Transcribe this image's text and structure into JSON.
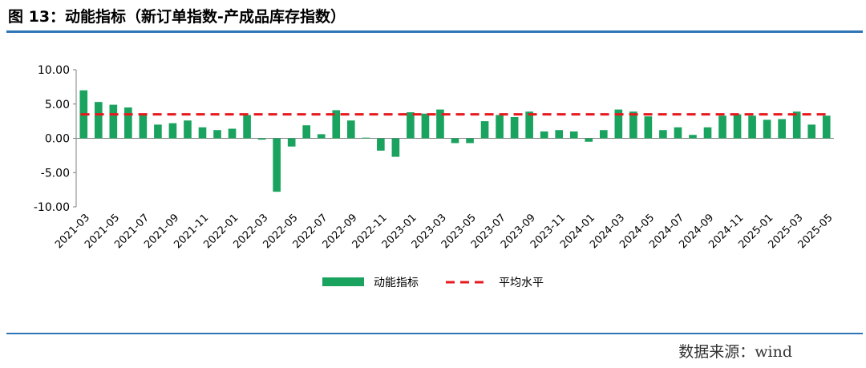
{
  "title": "图 13：动能指标（新订单指数-产成品库存指数）",
  "source": "数据来源：wind",
  "colors": {
    "bar": "#1aa35f",
    "avg": "#e8191e",
    "axis": "#7f7f7f",
    "rule": "#2e75b6"
  },
  "chart_data": {
    "type": "bar",
    "title": "",
    "xlabel": "",
    "ylabel": "",
    "ylim": [
      -10,
      10
    ],
    "yticks": [
      "10.00",
      "5.00",
      "0.00",
      "-5.00",
      "-10.00"
    ],
    "categories": [
      "2021-03",
      "2021-04",
      "2021-05",
      "2021-06",
      "2021-07",
      "2021-08",
      "2021-09",
      "2021-10",
      "2021-11",
      "2021-12",
      "2022-01",
      "2022-02",
      "2022-03",
      "2022-04",
      "2022-05",
      "2022-06",
      "2022-07",
      "2022-08",
      "2022-09",
      "2022-10",
      "2022-11",
      "2022-12",
      "2023-01",
      "2023-02",
      "2023-03",
      "2023-04",
      "2023-05",
      "2023-06",
      "2023-07",
      "2023-08",
      "2023-09",
      "2023-10",
      "2023-11",
      "2023-12",
      "2024-01",
      "2024-02",
      "2024-03",
      "2024-04",
      "2024-05",
      "2024-06",
      "2024-07",
      "2024-08",
      "2024-09",
      "2024-10",
      "2024-11",
      "2024-12",
      "2025-01",
      "2025-02",
      "2025-03",
      "2025-04",
      "2025-05"
    ],
    "xtick_labels": [
      "2021-03",
      "2021-05",
      "2021-07",
      "2021-09",
      "2021-11",
      "2022-01",
      "2022-03",
      "2022-05",
      "2022-07",
      "2022-09",
      "2022-11",
      "2023-01",
      "2023-03",
      "2023-05",
      "2023-07",
      "2023-09",
      "2023-11",
      "2024-01",
      "2024-03",
      "2024-05",
      "2024-07",
      "2024-09",
      "2024-11",
      "2025-01",
      "2025-03",
      "2025-05"
    ],
    "series": [
      {
        "name": "动能指标",
        "type": "bar",
        "values": [
          7.0,
          5.3,
          4.9,
          4.5,
          3.4,
          2.0,
          2.2,
          2.6,
          1.6,
          1.2,
          1.4,
          3.4,
          -0.2,
          -7.8,
          -1.2,
          1.9,
          0.6,
          4.1,
          2.6,
          0.1,
          -1.8,
          -2.7,
          3.8,
          3.6,
          4.2,
          -0.7,
          -0.7,
          2.5,
          3.4,
          3.1,
          3.9,
          1.0,
          1.2,
          1.0,
          -0.5,
          1.2,
          4.2,
          3.9,
          3.2,
          1.2,
          1.6,
          0.5,
          1.6,
          3.3,
          3.5,
          3.3,
          2.7,
          2.8,
          3.9,
          2.0,
          3.3
        ]
      },
      {
        "name": "平均水平",
        "type": "line",
        "dashed": true,
        "value": 3.5
      }
    ],
    "grid": false,
    "legend": "bottom-center"
  }
}
